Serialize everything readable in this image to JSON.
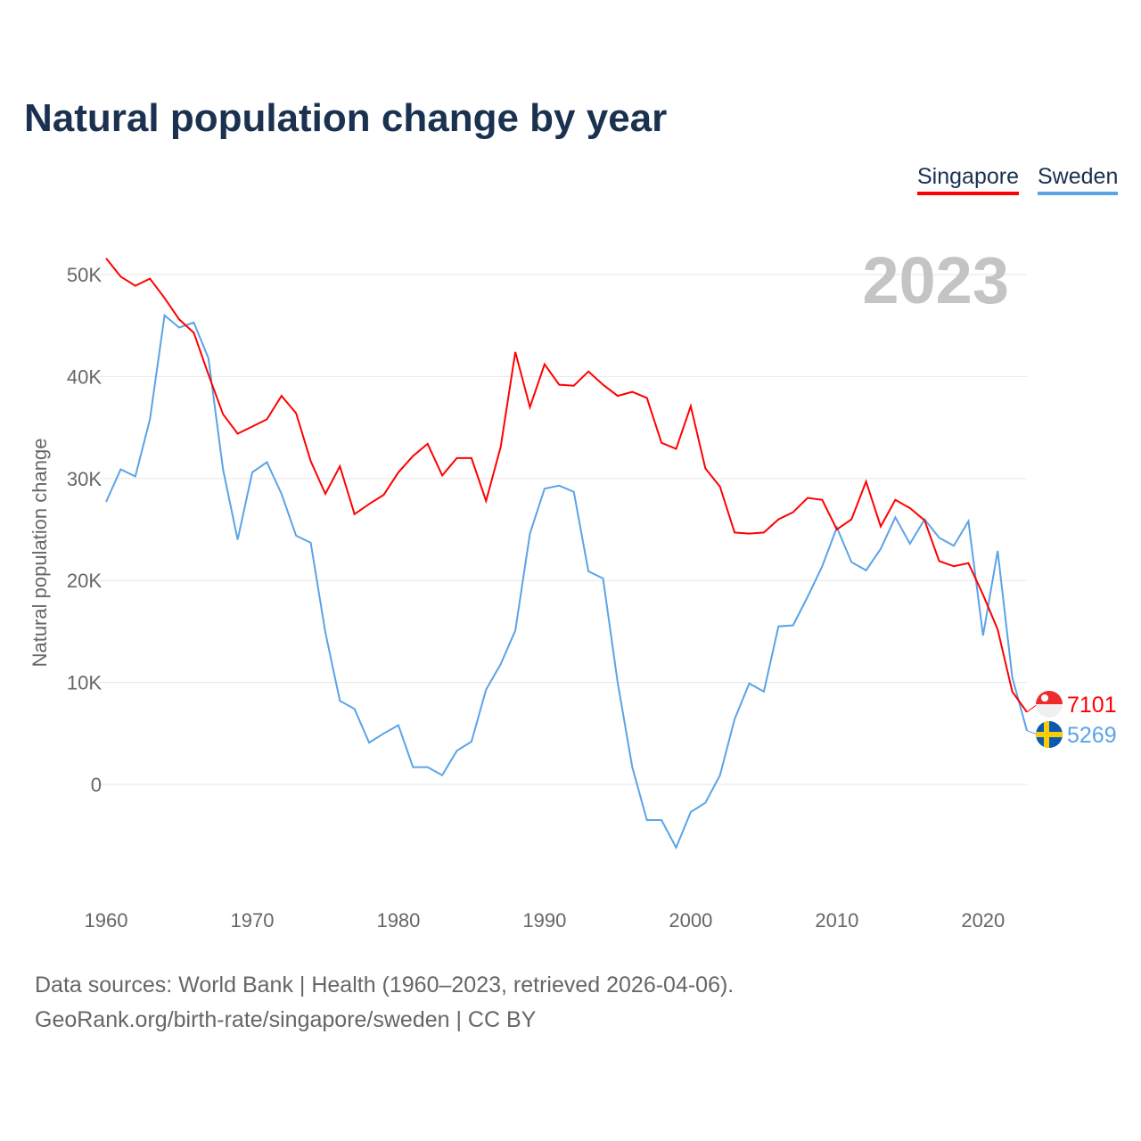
{
  "title": "Natural population change by year",
  "year_label": "2023",
  "legend": [
    "Singapore",
    "Sweden"
  ],
  "footer": {
    "line1": "Data sources: World Bank | Health (1960–2023, retrieved 2026-04-06).",
    "line2": "GeoRank.org/birth-rate/singapore/sweden | CC BY"
  },
  "chart_data": {
    "type": "line",
    "title": "Natural population change by year",
    "xlabel": "",
    "ylabel": "Natural population change",
    "xlim": [
      1960,
      2023
    ],
    "ylim": [
      -10500,
      52500
    ],
    "x_ticks": [
      1960,
      1970,
      1980,
      1990,
      2000,
      2010,
      2020
    ],
    "x_tick_labels": [
      "1960",
      "1970",
      "1980",
      "1990",
      "2000",
      "2010",
      "2020"
    ],
    "y_ticks": [
      0,
      10000,
      20000,
      30000,
      40000,
      50000
    ],
    "y_tick_labels": [
      "0",
      "10K",
      "20K",
      "30K",
      "40K",
      "50K"
    ],
    "grid": true,
    "legend_position": "top-right",
    "x_start": 1960,
    "series": [
      {
        "name": "Singapore",
        "color": "#ff0000",
        "end_label": "7101",
        "flag": "singapore-flag",
        "values": [
          51600,
          49800,
          48900,
          49600,
          47700,
          45600,
          44300,
          40200,
          36300,
          34400,
          35100,
          35800,
          38100,
          36400,
          31700,
          28500,
          31200,
          26500,
          27500,
          28400,
          30600,
          32200,
          33400,
          30300,
          32000,
          32000,
          27800,
          33100,
          42400,
          37000,
          41200,
          39200,
          39100,
          40500,
          39200,
          38100,
          38500,
          37900,
          33500,
          32900,
          37100,
          31000,
          29200,
          24700,
          24600,
          24700,
          26000,
          26700,
          28100,
          27900,
          25000,
          26000,
          29700,
          25300,
          27900,
          27100,
          25900,
          21900,
          21400,
          21700,
          18600,
          15200,
          9100,
          7101
        ]
      },
      {
        "name": "Sweden",
        "color": "#5aa3e8",
        "end_label": "5269",
        "flag": "sweden-flag",
        "values": [
          27700,
          30900,
          30200,
          35800,
          46000,
          44800,
          45300,
          41800,
          30900,
          24000,
          30600,
          31600,
          28500,
          24400,
          23700,
          14900,
          8200,
          7400,
          4100,
          5000,
          5800,
          1700,
          1700,
          900,
          3300,
          4200,
          9300,
          11800,
          15100,
          24600,
          29000,
          29300,
          28700,
          20900,
          20200,
          10000,
          1700,
          -3500,
          -3500,
          -6200,
          -2700,
          -1800,
          900,
          6400,
          9900,
          9100,
          15500,
          15600,
          18400,
          21400,
          25200,
          21800,
          21000,
          23100,
          26200,
          23600,
          26000,
          24200,
          23400,
          25800,
          14600,
          22900,
          10500,
          5269
        ]
      }
    ]
  }
}
